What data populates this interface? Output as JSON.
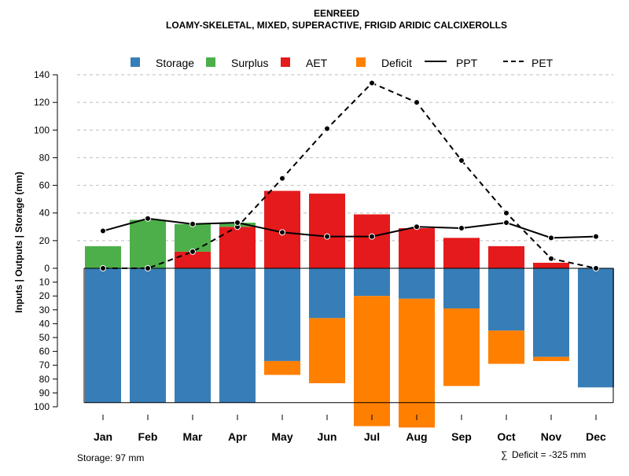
{
  "chart_data": {
    "type": "bar",
    "title": "EENREED",
    "subtitle": "LOAMY-SKELETAL, MIXED, SUPERACTIVE, FRIGID ARIDIC CALCIXEROLLS",
    "ylabel": "Inputs | Outputs | Storage    (mm)",
    "categories": [
      "Jan",
      "Feb",
      "Mar",
      "Apr",
      "May",
      "Jun",
      "Jul",
      "Aug",
      "Sep",
      "Oct",
      "Nov",
      "Dec"
    ],
    "upper_axis": {
      "range": [
        0,
        140
      ],
      "ticks": [
        "0",
        "20",
        "40",
        "60",
        "80",
        "100",
        "120",
        "140"
      ]
    },
    "lower_axis": {
      "range": [
        0,
        100
      ],
      "ticks": [
        "0",
        "10",
        "20",
        "30",
        "40",
        "50",
        "60",
        "70",
        "80",
        "90",
        "100"
      ]
    },
    "storage_capacity": 97,
    "legend": {
      "storage": "Storage",
      "surplus": "Surplus",
      "aet": "AET",
      "deficit": "Deficit",
      "ppt": "PPT",
      "pet": "PET"
    },
    "colors": {
      "storage": "#377EB8",
      "surplus": "#4DAF4A",
      "aet": "#E41A1C",
      "deficit": "#FF7F00",
      "line": "#000000",
      "grid": "#BEBEBE"
    },
    "series": [
      {
        "name": "Surplus",
        "values": [
          16,
          35,
          20,
          3,
          0,
          0,
          0,
          0,
          0,
          0,
          0,
          0
        ]
      },
      {
        "name": "AET",
        "values": [
          0,
          0,
          12,
          30,
          56,
          54,
          39,
          29,
          22,
          16,
          4,
          0
        ]
      },
      {
        "name": "Storage",
        "values": [
          97,
          97,
          97,
          97,
          67,
          36,
          20,
          22,
          29,
          45,
          64,
          86
        ]
      },
      {
        "name": "Deficit",
        "values": [
          0,
          0,
          0,
          0,
          10,
          47,
          94,
          93,
          56,
          24,
          3,
          0
        ]
      },
      {
        "name": "PPT",
        "values": [
          27,
          36,
          32,
          33,
          26,
          23,
          23,
          30,
          29,
          33,
          22,
          23
        ]
      },
      {
        "name": "PET",
        "values": [
          0,
          0,
          12,
          30,
          65,
          101,
          134,
          120,
          78,
          40,
          7,
          0
        ]
      }
    ],
    "footer_left": "Storage: 97 mm",
    "footer_right": "Deficit = -325 mm",
    "footer_right_symbol": "∑"
  }
}
